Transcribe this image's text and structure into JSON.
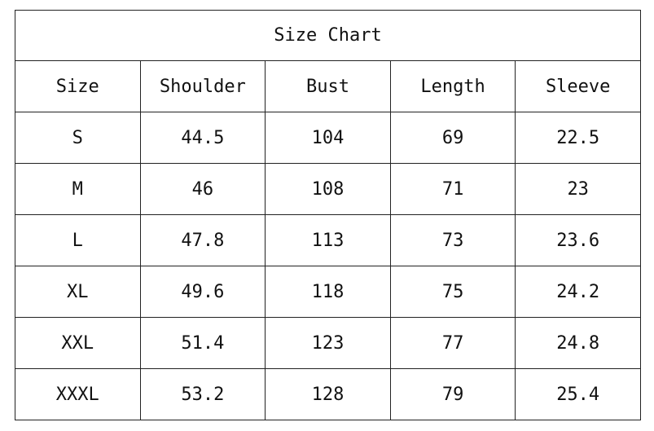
{
  "title": "Size Chart",
  "columns": [
    "Size",
    "Shoulder",
    "Bust",
    "Length",
    "Sleeve"
  ],
  "rows": [
    [
      "S",
      "44.5",
      "104",
      "69",
      "22.5"
    ],
    [
      "M",
      "46",
      "108",
      "71",
      "23"
    ],
    [
      "L",
      "47.8",
      "113",
      "73",
      "23.6"
    ],
    [
      "XL",
      "49.6",
      "118",
      "75",
      "24.2"
    ],
    [
      "XXL",
      "51.4",
      "123",
      "77",
      "24.8"
    ],
    [
      "XXXL",
      "53.2",
      "128",
      "79",
      "25.4"
    ]
  ]
}
